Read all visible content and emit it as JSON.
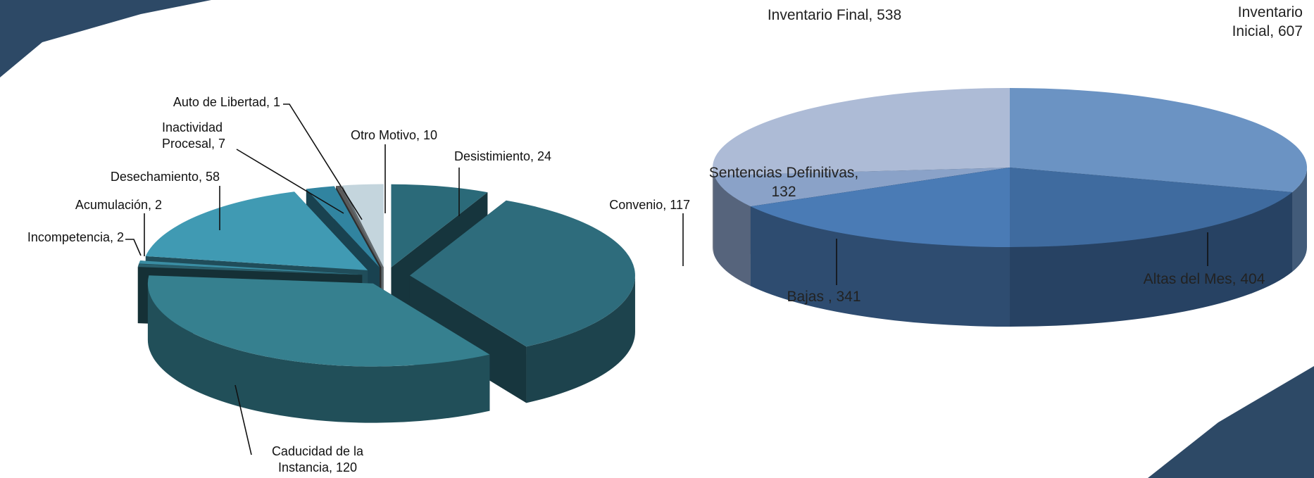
{
  "chart_data": [
    {
      "type": "pie3d",
      "values": [
        24,
        117,
        120,
        2,
        2,
        58,
        7,
        1,
        10
      ],
      "value_labels": [
        "Desistimiento, 24",
        "Convenio, 117",
        "Caducidad de la Instancia, 120",
        "Incompetencia, 2",
        "Acumulación, 2",
        "Desechamiento, 58",
        "Inactividad Procesal, 7",
        "Auto de Libertad, 1",
        "Otro Motivo, 10"
      ],
      "colors": [
        "#2b6a79",
        "#2e6c7c",
        "#36808f",
        "#2a5f6c",
        "#3a8da3",
        "#409ab3",
        "#3184a0",
        "#5a5a5a",
        "#c4d5dd"
      ]
    },
    {
      "type": "pie3d",
      "values": [
        607,
        404,
        341,
        132,
        538
      ],
      "value_labels": [
        "Inventario Inicial, 607",
        "Altas del Mes, 404",
        "Bajas , 341",
        "Sentencias Definitivas, 132",
        "Inventario Final, 538"
      ],
      "colors": [
        "#6b93c3",
        "#3f6b9f",
        "#4a7bb5",
        "#8aa2c8",
        "#adbbd6"
      ]
    }
  ]
}
